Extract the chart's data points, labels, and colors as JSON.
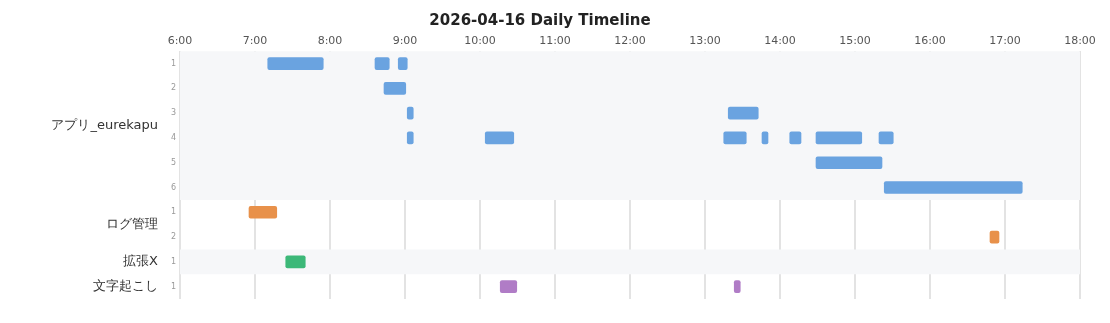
{
  "chart_data": {
    "type": "bar",
    "orientation": "horizontal",
    "title": "2026-04-16 Daily Timeline",
    "categories": [
      "1",
      "2",
      "3",
      "4",
      "5",
      "6",
      "1",
      "2",
      "1",
      "1"
    ],
    "series": [
      {
        "base": [
          7.17,
          8.72,
          9.03,
          9.03,
          14.48,
          15.39,
          6.92,
          16.8,
          7.41,
          10.27
        ],
        "values": [
          0.74,
          0.29,
          0.08,
          0.08,
          0.88,
          1.84,
          0.37,
          0.12,
          0.26,
          0.22
        ],
        "colors": [
          "#6aa3e0",
          "#6aa3e0",
          "#6aa3e0",
          "#6aa3e0",
          "#6aa3e0",
          "#6aa3e0",
          "#e8914a",
          "#e8914a",
          "#3cb878",
          "#b07cc6"
        ]
      },
      {
        "base": [
          8.6,
          null,
          13.31,
          10.07,
          null,
          null,
          null,
          null,
          null,
          13.39
        ],
        "values": [
          0.19,
          null,
          0.4,
          0.38,
          null,
          null,
          null,
          null,
          null,
          0.08
        ],
        "colors": [
          "#6aa3e0",
          "#6aa3e0",
          "#6aa3e0",
          "#6aa3e0",
          "#6aa3e0",
          "#6aa3e0",
          "#e8914a",
          "#e8914a",
          "#3cb878",
          "#b07cc6"
        ]
      },
      {
        "base": [
          8.91,
          null,
          null,
          13.25,
          null,
          null,
          null,
          null,
          null,
          null
        ],
        "values": [
          0.12,
          null,
          null,
          0.3,
          null,
          null,
          null,
          null,
          null,
          null
        ],
        "colors": [
          "#6aa3e0",
          "#6aa3e0",
          "#6aa3e0",
          "#6aa3e0",
          "#6aa3e0",
          "#6aa3e0",
          "#e8914a",
          "#e8914a",
          "#3cb878",
          "#b07cc6"
        ]
      },
      {
        "base": [
          null,
          null,
          null,
          13.76,
          null,
          null,
          null,
          null,
          null,
          null
        ],
        "values": [
          null,
          null,
          null,
          0.08,
          null,
          null,
          null,
          null,
          null,
          null
        ],
        "colors": [
          "#6aa3e0",
          "#6aa3e0",
          "#6aa3e0",
          "#6aa3e0",
          "#6aa3e0",
          "#6aa3e0",
          "#e8914a",
          "#e8914a",
          "#3cb878",
          "#b07cc6"
        ]
      },
      {
        "base": [
          null,
          null,
          null,
          14.13,
          null,
          null,
          null,
          null,
          null,
          null
        ],
        "values": [
          null,
          null,
          null,
          0.15,
          null,
          null,
          null,
          null,
          null,
          null
        ],
        "colors": [
          "#6aa3e0",
          "#6aa3e0",
          "#6aa3e0",
          "#6aa3e0",
          "#6aa3e0",
          "#6aa3e0",
          "#e8914a",
          "#e8914a",
          "#3cb878",
          "#b07cc6"
        ]
      },
      {
        "base": [
          null,
          null,
          null,
          14.48,
          null,
          null,
          null,
          null,
          null,
          null
        ],
        "values": [
          null,
          null,
          null,
          0.61,
          null,
          null,
          null,
          null,
          null,
          null
        ],
        "colors": [
          "#6aa3e0",
          "#6aa3e0",
          "#6aa3e0",
          "#6aa3e0",
          "#6aa3e0",
          "#6aa3e0",
          "#e8914a",
          "#e8914a",
          "#3cb878",
          "#b07cc6"
        ]
      },
      {
        "base": [
          null,
          null,
          null,
          15.32,
          null,
          null,
          null,
          null,
          null,
          null
        ],
        "values": [
          null,
          null,
          null,
          0.19,
          null,
          null,
          null,
          null,
          null,
          null
        ],
        "colors": [
          "#6aa3e0",
          "#6aa3e0",
          "#6aa3e0",
          "#6aa3e0",
          "#6aa3e0",
          "#6aa3e0",
          "#e8914a",
          "#e8914a",
          "#3cb878",
          "#b07cc6"
        ]
      }
    ],
    "xlim": [
      6,
      18
    ],
    "xticks": [
      {
        "value": 6,
        "label": "6:00"
      },
      {
        "value": 7,
        "label": "7:00"
      },
      {
        "value": 8,
        "label": "8:00"
      },
      {
        "value": 9,
        "label": "9:00"
      },
      {
        "value": 10,
        "label": "10:00"
      },
      {
        "value": 11,
        "label": "11:00"
      },
      {
        "value": 12,
        "label": "12:00"
      },
      {
        "value": 13,
        "label": "13:00"
      },
      {
        "value": 14,
        "label": "14:00"
      },
      {
        "value": 15,
        "label": "15:00"
      },
      {
        "value": 16,
        "label": "16:00"
      },
      {
        "value": 17,
        "label": "17:00"
      },
      {
        "value": 18,
        "label": "18:00"
      }
    ],
    "grid": "x",
    "annotations": [
      "アプリ_eurekapu",
      "ログ管理",
      "拡張X",
      "文字起こし"
    ]
  }
}
